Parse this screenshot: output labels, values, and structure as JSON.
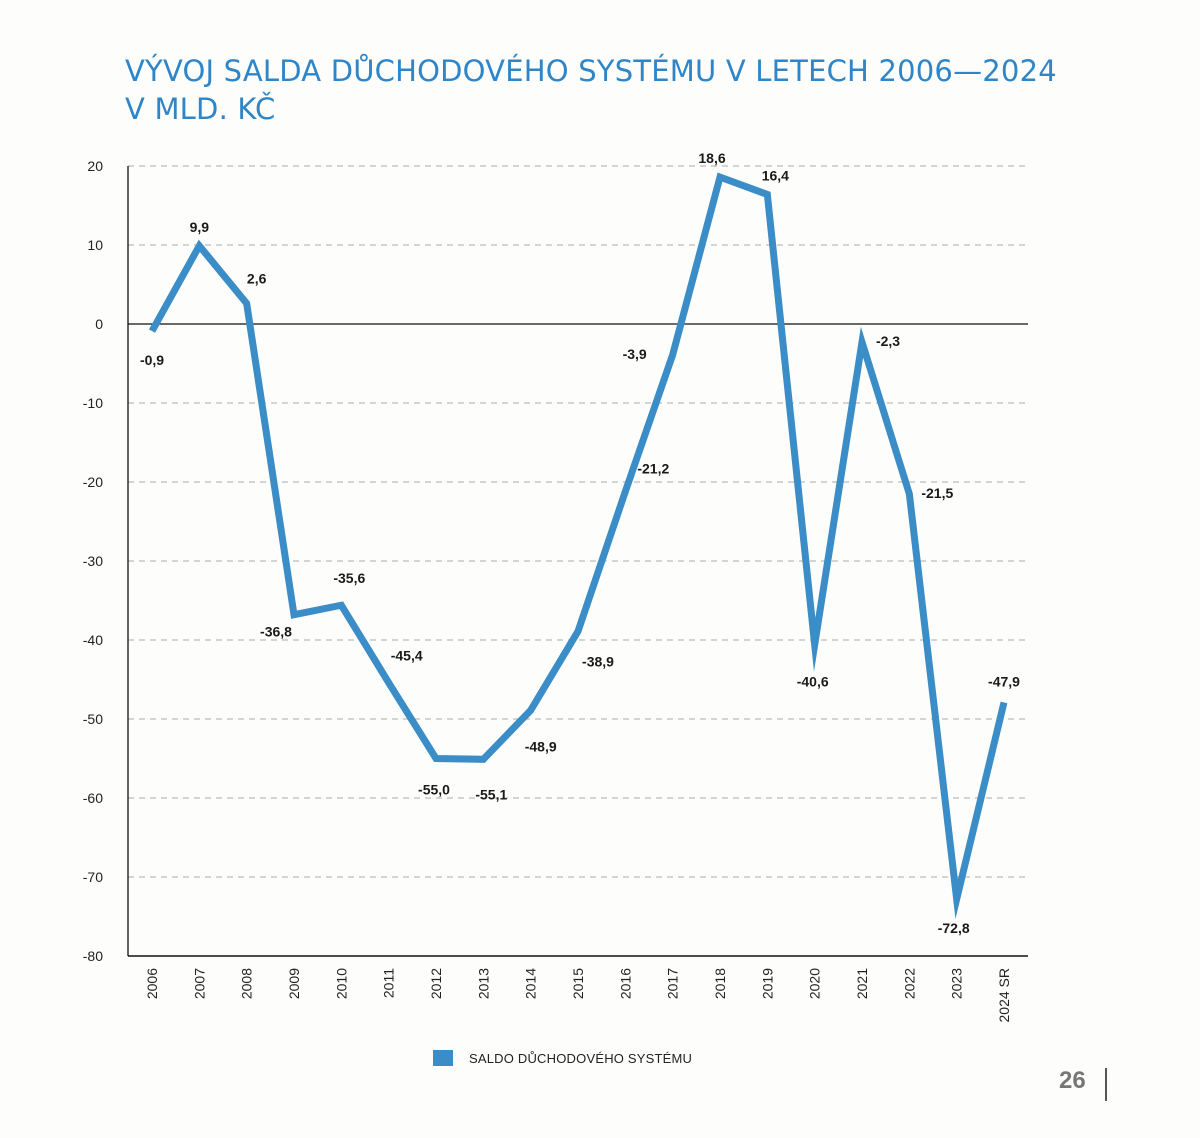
{
  "chart_title": {
    "line1": "VÝVOJ SALDA DŮCHODOVÉHO SYSTÉMU V LETECH 2006—2024",
    "line2": "V MLD. KČ"
  },
  "colors": {
    "line": "#3a8dc6",
    "title": "#2e86c8",
    "grid": "#bbbbbb",
    "axis": "#111111"
  },
  "chart_data": {
    "type": "line",
    "title": "VÝVOJ SALDA DŮCHODOVÉHO SYSTÉMU V LETECH 2006—2024 V MLD. KČ",
    "xlabel": "",
    "ylabel": "",
    "categories": [
      "2006",
      "2007",
      "2008",
      "2009",
      "2010",
      "2011",
      "2012",
      "2013",
      "2014",
      "2015",
      "2016",
      "2017",
      "2018",
      "2019",
      "2020",
      "2021",
      "2022",
      "2023",
      "2024 SR"
    ],
    "series": [
      {
        "name": "SALDO DŮCHODOVÉHO SYSTÉMU",
        "values": [
          -0.9,
          9.9,
          2.6,
          -36.8,
          -35.6,
          -45.4,
          -55.0,
          -55.1,
          -48.9,
          -38.9,
          -21.2,
          -3.9,
          18.6,
          16.4,
          -40.6,
          -2.3,
          -21.5,
          -72.8,
          -47.9
        ]
      }
    ],
    "data_labels": [
      "-0,9",
      "9,9",
      "2,6",
      "-36,8",
      "-35,6",
      "-45,4",
      "-55,0",
      "-55,1",
      "-48,9",
      "-38,9",
      "-21,2",
      "-3,9",
      "18,6",
      "16,4",
      "-40,6",
      "-2,3",
      "-21,5",
      "-72,8",
      "-47,9"
    ],
    "ylim": [
      -80,
      20
    ],
    "yticks": [
      20,
      10,
      0,
      -10,
      -20,
      -30,
      -40,
      -50,
      -60,
      -70,
      -80
    ],
    "grid": "dashed horizontal",
    "legend": "bottom-center"
  },
  "legend": {
    "label": "SALDO DŮCHODOVÉHO SYSTÉMU"
  },
  "page": {
    "number": "26"
  }
}
